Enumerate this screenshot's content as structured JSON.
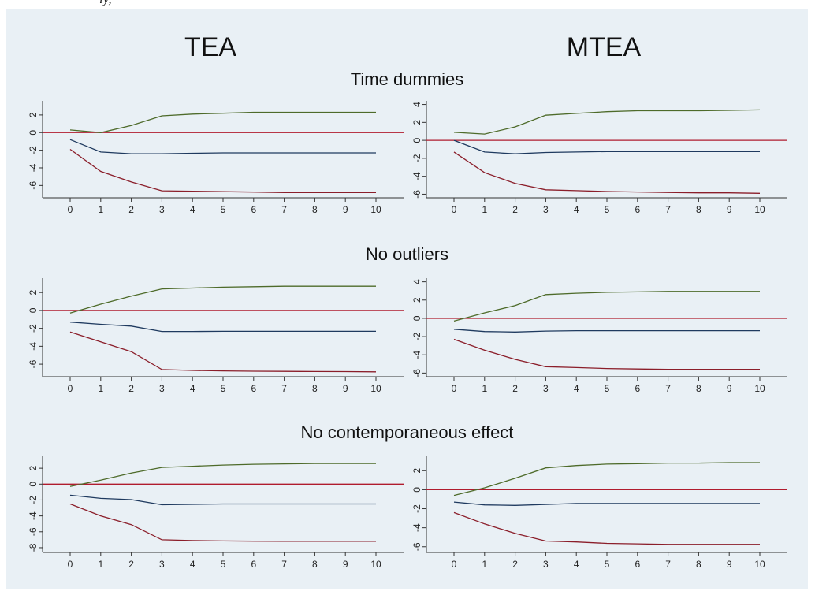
{
  "top_fragment": "ly,",
  "columns": [
    "TEA",
    "MTEA"
  ],
  "rows": [
    "Time dummies",
    "No outliers",
    "No contemporaneous effect"
  ],
  "colors": {
    "background": "#e9f0f5",
    "zero_line": "#b01c2e",
    "upper": "#4e6b2a",
    "estimate": "#1f3a5f",
    "lower": "#8b1e2a",
    "axis": "#333333"
  },
  "chart_data": [
    {
      "type": "line",
      "row": "Time dummies",
      "column": "TEA",
      "x": [
        0,
        1,
        2,
        3,
        4,
        5,
        6,
        7,
        8,
        9,
        10
      ],
      "ylim": [
        -7.4,
        3.6
      ],
      "yticks": [
        2,
        0,
        -2,
        -4,
        -6
      ],
      "yticklabels": [
        "2",
        "0",
        "-2",
        "-4",
        "-6"
      ],
      "series": [
        {
          "role": "upper",
          "values": [
            0.3,
            0.0,
            0.8,
            1.9,
            2.1,
            2.2,
            2.3,
            2.3,
            2.3,
            2.3,
            2.3
          ]
        },
        {
          "role": "estimate",
          "values": [
            -0.8,
            -2.2,
            -2.4,
            -2.4,
            -2.35,
            -2.3,
            -2.3,
            -2.3,
            -2.3,
            -2.3,
            -2.3
          ]
        },
        {
          "role": "lower",
          "values": [
            -1.9,
            -4.4,
            -5.6,
            -6.6,
            -6.65,
            -6.7,
            -6.75,
            -6.8,
            -6.8,
            -6.8,
            -6.8
          ]
        }
      ]
    },
    {
      "type": "line",
      "row": "Time dummies",
      "column": "MTEA",
      "x": [
        0,
        1,
        2,
        3,
        4,
        5,
        6,
        7,
        8,
        9,
        10
      ],
      "ylim": [
        -6.4,
        4.4
      ],
      "yticks": [
        4,
        2,
        0,
        -2,
        -4,
        -6
      ],
      "yticklabels": [
        "4",
        "2",
        "0",
        "-2",
        "-4",
        "-6"
      ],
      "series": [
        {
          "role": "upper",
          "values": [
            0.9,
            0.7,
            1.5,
            2.8,
            3.0,
            3.2,
            3.3,
            3.3,
            3.3,
            3.35,
            3.4
          ]
        },
        {
          "role": "estimate",
          "values": [
            0.0,
            -1.3,
            -1.5,
            -1.35,
            -1.3,
            -1.25,
            -1.25,
            -1.25,
            -1.25,
            -1.25,
            -1.25
          ]
        },
        {
          "role": "lower",
          "values": [
            -1.3,
            -3.6,
            -4.8,
            -5.5,
            -5.6,
            -5.7,
            -5.75,
            -5.8,
            -5.85,
            -5.85,
            -5.9
          ]
        }
      ]
    },
    {
      "type": "line",
      "row": "No outliers",
      "column": "TEA",
      "x": [
        0,
        1,
        2,
        3,
        4,
        5,
        6,
        7,
        8,
        9,
        10
      ],
      "ylim": [
        -7.4,
        3.6
      ],
      "yticks": [
        2,
        0,
        -2,
        -4,
        -6
      ],
      "yticklabels": [
        "2",
        "0",
        "-2",
        "-4",
        "-6"
      ],
      "series": [
        {
          "role": "upper",
          "values": [
            -0.3,
            0.7,
            1.6,
            2.4,
            2.5,
            2.6,
            2.65,
            2.7,
            2.7,
            2.7,
            2.7
          ]
        },
        {
          "role": "estimate",
          "values": [
            -1.3,
            -1.55,
            -1.75,
            -2.35,
            -2.35,
            -2.33,
            -2.33,
            -2.33,
            -2.33,
            -2.33,
            -2.33
          ]
        },
        {
          "role": "lower",
          "values": [
            -2.4,
            -3.5,
            -4.6,
            -6.6,
            -6.7,
            -6.75,
            -6.78,
            -6.8,
            -6.82,
            -6.83,
            -6.85
          ]
        }
      ]
    },
    {
      "type": "line",
      "row": "No outliers",
      "column": "MTEA",
      "x": [
        0,
        1,
        2,
        3,
        4,
        5,
        6,
        7,
        8,
        9,
        10
      ],
      "ylim": [
        -6.4,
        4.4
      ],
      "yticks": [
        4,
        2,
        0,
        -2,
        -4,
        -6
      ],
      "yticklabels": [
        "4",
        "2",
        "0",
        "-2",
        "-4",
        "-6"
      ],
      "series": [
        {
          "role": "upper",
          "values": [
            -0.3,
            0.6,
            1.4,
            2.6,
            2.75,
            2.85,
            2.9,
            2.95,
            2.95,
            2.95,
            2.95
          ]
        },
        {
          "role": "estimate",
          "values": [
            -1.2,
            -1.45,
            -1.5,
            -1.4,
            -1.35,
            -1.35,
            -1.35,
            -1.35,
            -1.35,
            -1.35,
            -1.35
          ]
        },
        {
          "role": "lower",
          "values": [
            -2.3,
            -3.5,
            -4.5,
            -5.3,
            -5.4,
            -5.5,
            -5.55,
            -5.6,
            -5.6,
            -5.6,
            -5.6
          ]
        }
      ]
    },
    {
      "type": "line",
      "row": "No contemporaneous effect",
      "column": "TEA",
      "x": [
        0,
        1,
        2,
        3,
        4,
        5,
        6,
        7,
        8,
        9,
        10
      ],
      "ylim": [
        -8.6,
        3.6
      ],
      "yticks": [
        2,
        0,
        -2,
        -4,
        -6,
        -8
      ],
      "yticklabels": [
        "2",
        "0",
        "-2",
        "-4",
        "-6",
        "-8"
      ],
      "series": [
        {
          "role": "upper",
          "values": [
            -0.3,
            0.5,
            1.4,
            2.1,
            2.25,
            2.4,
            2.5,
            2.55,
            2.6,
            2.6,
            2.6
          ]
        },
        {
          "role": "estimate",
          "values": [
            -1.4,
            -1.8,
            -1.95,
            -2.6,
            -2.55,
            -2.5,
            -2.5,
            -2.5,
            -2.5,
            -2.5,
            -2.5
          ]
        },
        {
          "role": "lower",
          "values": [
            -2.5,
            -4.0,
            -5.1,
            -7.0,
            -7.1,
            -7.15,
            -7.18,
            -7.2,
            -7.2,
            -7.2,
            -7.2
          ]
        }
      ]
    },
    {
      "type": "line",
      "row": "No contemporaneous effect",
      "column": "MTEA",
      "x": [
        0,
        1,
        2,
        3,
        4,
        5,
        6,
        7,
        8,
        9,
        10
      ],
      "ylim": [
        -6.6,
        3.6
      ],
      "yticks": [
        2,
        0,
        -2,
        -4,
        -6
      ],
      "yticklabels": [
        "2",
        "0",
        "-2",
        "-4",
        "-6"
      ],
      "series": [
        {
          "role": "upper",
          "values": [
            -0.6,
            0.2,
            1.2,
            2.3,
            2.55,
            2.7,
            2.75,
            2.8,
            2.8,
            2.85,
            2.85
          ]
        },
        {
          "role": "estimate",
          "values": [
            -1.3,
            -1.6,
            -1.65,
            -1.55,
            -1.45,
            -1.45,
            -1.45,
            -1.45,
            -1.45,
            -1.45,
            -1.45
          ]
        },
        {
          "role": "lower",
          "values": [
            -2.4,
            -3.6,
            -4.6,
            -5.4,
            -5.5,
            -5.65,
            -5.7,
            -5.75,
            -5.75,
            -5.75,
            -5.75
          ]
        }
      ]
    }
  ]
}
